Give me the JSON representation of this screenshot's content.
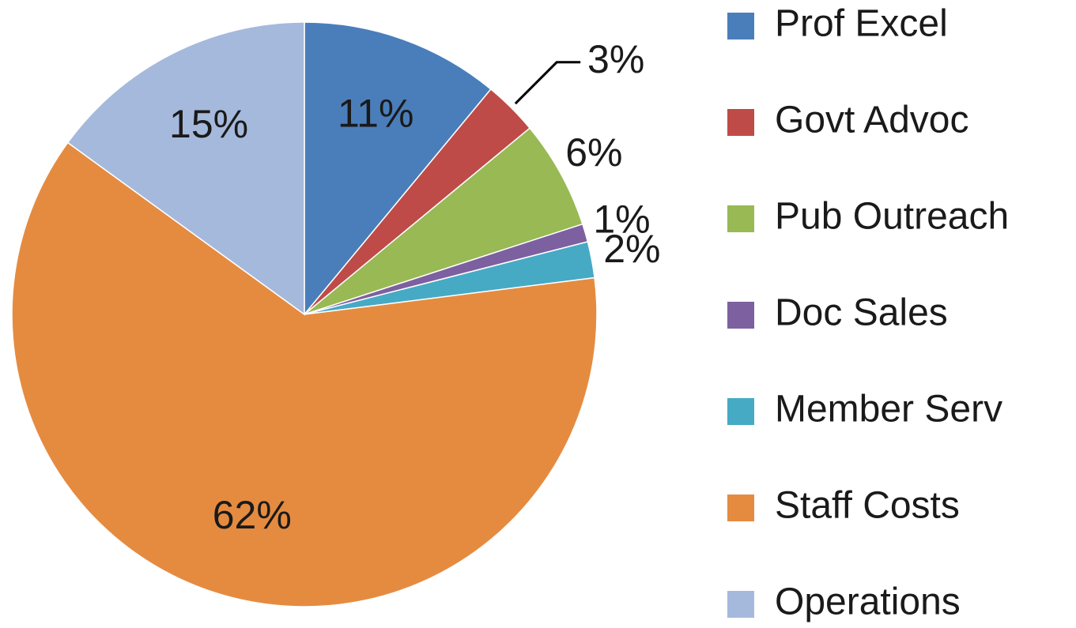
{
  "chart_data": {
    "type": "pie",
    "categories": [
      "Prof Excel",
      "Govt Advoc",
      "Pub Outreach",
      "Doc Sales",
      "Member Serv",
      "Staff Costs",
      "Operations"
    ],
    "values": [
      11,
      3,
      6,
      1,
      2,
      62,
      15
    ],
    "value_labels": [
      "11%",
      "3%",
      "6%",
      "1%",
      "2%",
      "62%",
      "15%"
    ],
    "colors": [
      "#4a7ebb",
      "#be4b48",
      "#98b954",
      "#7d60a0",
      "#46aac5",
      "#e58b40",
      "#a5b9dc"
    ],
    "legend": "right"
  }
}
